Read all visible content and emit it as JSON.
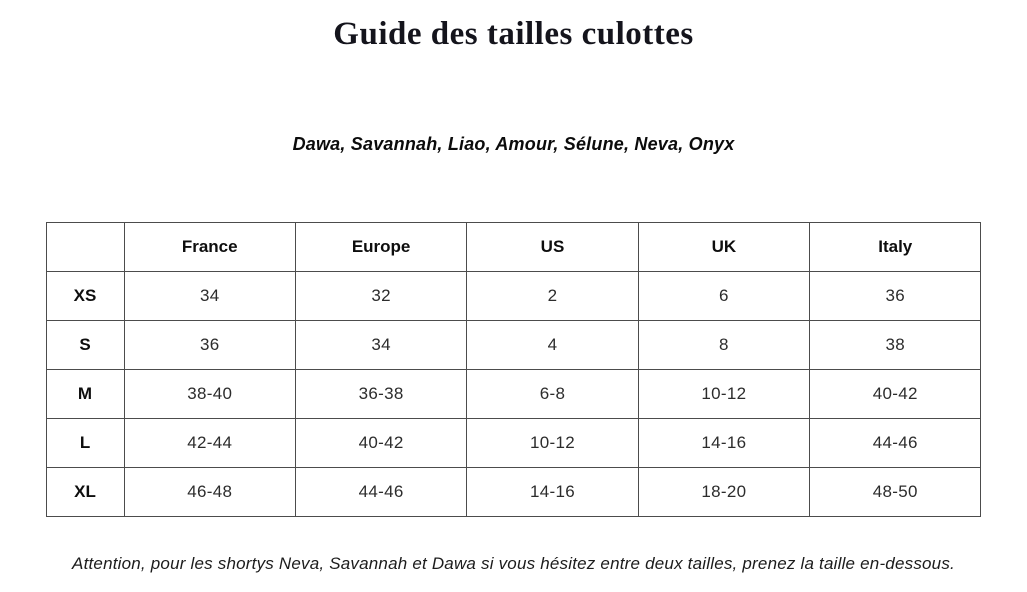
{
  "page": {
    "title": "Guide des tailles culottes",
    "subtitle": "Dawa, Savannah, Liao, Amour, Sélune, Neva, Onyx",
    "footnote": "Attention, pour les shortys Neva, Savannah et Dawa si vous hésitez entre deux tailles, prenez la taille en-dessous."
  },
  "colors": {
    "background": "#ffffff",
    "table_border": "#4c4c4c",
    "title_text": "#14141c",
    "cell_text": "#2c2c2c"
  },
  "size_table": {
    "columns": [
      "",
      "France",
      "Europe",
      "US",
      "UK",
      "Italy"
    ],
    "rows": [
      {
        "size": "XS",
        "france": "34",
        "europe": "32",
        "us": "2",
        "uk": "6",
        "italy": "36"
      },
      {
        "size": "S",
        "france": "36",
        "europe": "34",
        "us": "4",
        "uk": "8",
        "italy": "38"
      },
      {
        "size": "M",
        "france": "38-40",
        "europe": "36-38",
        "us": "6-8",
        "uk": "10-12",
        "italy": "40-42"
      },
      {
        "size": "L",
        "france": "42-44",
        "europe": "40-42",
        "us": "10-12",
        "uk": "14-16",
        "italy": "44-46"
      },
      {
        "size": "XL",
        "france": "46-48",
        "europe": "44-46",
        "us": "14-16",
        "uk": "18-20",
        "italy": "48-50"
      }
    ]
  }
}
